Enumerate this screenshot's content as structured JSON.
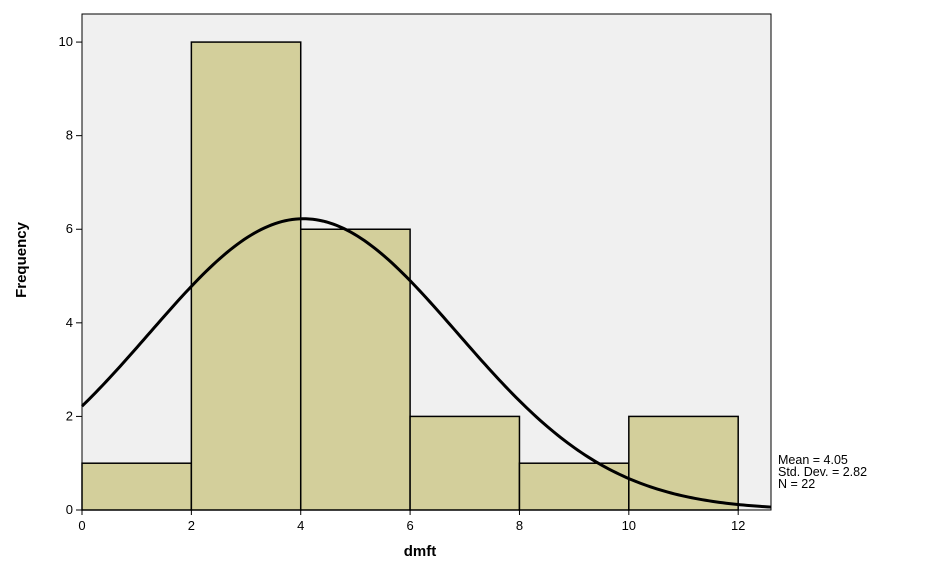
{
  "chart_data": {
    "type": "histogram",
    "xlabel": "dmft",
    "ylabel": "Frequency",
    "xlim": [
      0,
      12.6
    ],
    "ylim": [
      0,
      10.6
    ],
    "x_ticks": [
      0,
      2,
      4,
      6,
      8,
      10,
      12
    ],
    "y_ticks": [
      0,
      2,
      4,
      6,
      8,
      10
    ],
    "bins": [
      {
        "x0": 0,
        "x1": 2,
        "count": 1
      },
      {
        "x0": 2,
        "x1": 4,
        "count": 10
      },
      {
        "x0": 4,
        "x1": 6,
        "count": 6
      },
      {
        "x0": 6,
        "x1": 8,
        "count": 2
      },
      {
        "x0": 8,
        "x1": 10,
        "count": 1
      },
      {
        "x0": 10,
        "x1": 12,
        "count": 2
      }
    ],
    "normal_curve": {
      "mean": 4.05,
      "sd": 2.82,
      "n": 22,
      "bin_width": 2
    },
    "bar_color": "#d3cf9b",
    "plot_background": "#f0f0f0",
    "grid": false
  },
  "stats": {
    "mean": "Mean = 4.05",
    "sd": "Std. Dev. = 2.82",
    "n": "N = 22"
  }
}
